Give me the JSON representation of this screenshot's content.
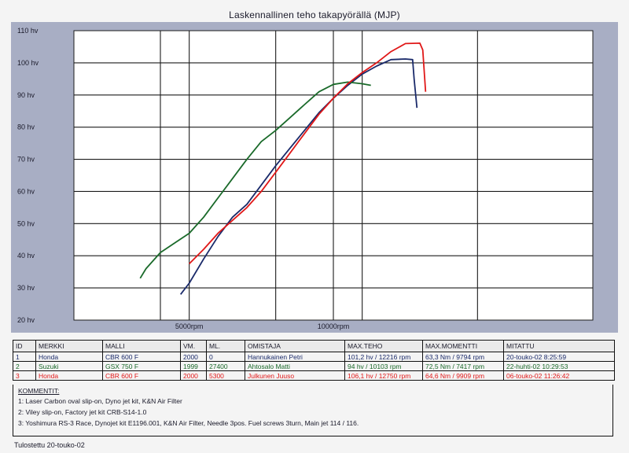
{
  "chart_data": {
    "type": "line",
    "title": "Laskennallinen teho takapyörällä (MJP)",
    "xlabel": "",
    "ylabel": "",
    "xlim": [
      1000,
      19000
    ],
    "ylim": [
      20,
      110
    ],
    "y_ticks": [
      "20 hv",
      "30 hv",
      "40 hv",
      "50 hv",
      "60 hv",
      "70 hv",
      "80 hv",
      "90 hv",
      "100 hv",
      "110 hv"
    ],
    "x_ticks": [
      {
        "value": 5000,
        "label": "5000rpm"
      },
      {
        "value": 10000,
        "label": "10000rpm"
      }
    ],
    "x_grid": [
      4000,
      8000,
      11000,
      15000
    ],
    "grid": true,
    "colors": {
      "plot_bg": "#ffffff",
      "frame": "#a8aec4",
      "grid": "#1c1c1c"
    },
    "series": [
      {
        "id": "1",
        "color": "#1a2a6a",
        "x": [
          4700,
          5000,
          5500,
          6000,
          6500,
          7000,
          7500,
          8000,
          8500,
          9000,
          9500,
          10000,
          10500,
          11000,
          11500,
          12000,
          12500,
          12750,
          12800,
          12900
        ],
        "y": [
          28,
          31.5,
          39,
          46,
          52,
          56,
          62,
          68,
          73.5,
          79,
          84.5,
          89,
          93,
          96.5,
          99,
          101,
          101.2,
          101,
          95,
          86
        ]
      },
      {
        "id": "2",
        "color": "#1a6a2a",
        "x": [
          3300,
          3500,
          4000,
          4500,
          5000,
          5500,
          6000,
          6500,
          7000,
          7500,
          8000,
          8500,
          9000,
          9500,
          10000,
          10500,
          11000,
          11300
        ],
        "y": [
          33,
          36,
          41,
          44,
          47,
          52,
          58,
          64,
          70,
          75.5,
          79,
          83,
          87,
          91,
          93.3,
          94,
          93.5,
          93
        ]
      },
      {
        "id": "3",
        "color": "#e01818",
        "x": [
          5000,
          5500,
          6000,
          6500,
          7000,
          7500,
          8000,
          8500,
          9000,
          9500,
          10000,
          10500,
          11000,
          11500,
          12000,
          12500,
          13000,
          13100,
          13200
        ],
        "y": [
          37.5,
          42,
          47,
          51,
          55,
          60,
          66,
          72,
          78,
          84,
          89,
          93.5,
          97,
          100,
          103.5,
          106,
          106.1,
          104,
          91
        ]
      }
    ]
  },
  "table": {
    "headers": [
      "ID",
      "MERKKI",
      "MALLI",
      "VM.",
      "ML.",
      "OMISTAJA",
      "MAX.TEHO",
      "MAX.MOMENTTI",
      "MITATTU"
    ],
    "rows": [
      {
        "color": "blue",
        "cells": [
          "1",
          "Honda",
          "CBR 600 F",
          "2000",
          "0",
          "Hannukainen Petri",
          "101,2 hv / 12216 rpm",
          "63,3 Nm / 9794 rpm",
          "20-touko-02 8:25:59"
        ]
      },
      {
        "color": "green",
        "cells": [
          "2",
          "Suzuki",
          "GSX 750 F",
          "1999",
          "27400",
          "Ahtosalo Matti",
          "94 hv / 10103 rpm",
          "72,5 Nm / 7417 rpm",
          "22-huhti-02 10:29:53"
        ]
      },
      {
        "color": "red",
        "cells": [
          "3",
          "Honda",
          "CBR 600 F",
          "2000",
          "5300",
          "Julkunen Juuso",
          "106,1 hv / 12750 rpm",
          "64,6 Nm / 9909 rpm",
          "06-touko-02 11:26:42"
        ]
      }
    ]
  },
  "notes": {
    "title": "KOMMENTIT:",
    "items": [
      "1:   Laser Carbon oval slip-on, Dyno jet kit, K&N Air Filter",
      "2:   Viley slip-on, Factory jet kit CRB-S14-1.0",
      "3:   Yoshimura RS-3 Race, Dynojet kit E1196.001, K&N Air Filter, Needle 3pos. Fuel screws 3turn, Main jet 114 / 116."
    ]
  },
  "footer": "Tulostettu 20-touko-02"
}
